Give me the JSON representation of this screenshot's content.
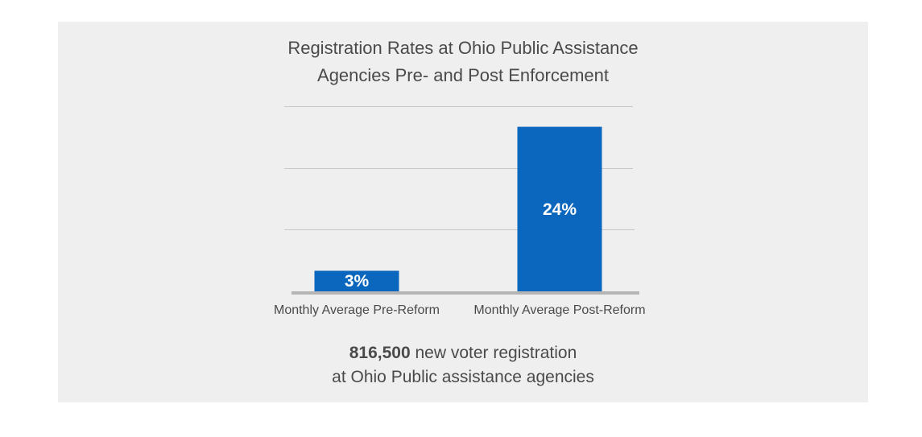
{
  "colors": {
    "panel_background": "#efefef",
    "bar": "#0a67bd",
    "gridline": "#c8c8c8",
    "baseline": "#b5b5b5",
    "text": "#4a4a4a",
    "bar_label": "#ffffff"
  },
  "chart_data": {
    "type": "bar",
    "title_lines": [
      "Registration Rates at Ohio Public Assistance",
      "Agencies Pre- and Post Enforcement"
    ],
    "categories": [
      "Monthly Average Pre-Reform",
      "Monthly Average Post-Reform"
    ],
    "values": [
      3,
      24
    ],
    "data_labels": [
      "3%",
      "24%"
    ],
    "unit": "%",
    "ylim": [
      0,
      27
    ],
    "gridlines": [
      9,
      18,
      27
    ],
    "grid": true,
    "legend": "none"
  },
  "footer": {
    "highlight": "816,500",
    "line1_rest": " new voter registration",
    "line2": "at Ohio Public assistance agencies"
  }
}
